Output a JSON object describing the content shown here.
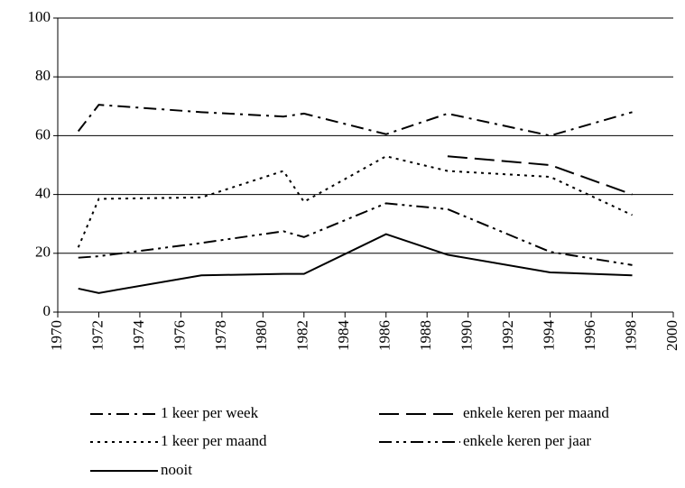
{
  "chart_data": {
    "type": "line",
    "x": [
      1971,
      1972,
      1977,
      1981,
      1982,
      1986,
      1989,
      1994,
      1998
    ],
    "series": [
      {
        "name": "1 keer per week",
        "color": "#000000",
        "dash": "14 6 3 6",
        "values": [
          61.5,
          70.5,
          68,
          66.5,
          67.5,
          60.5,
          67.5,
          60,
          68
        ]
      },
      {
        "name": "enkele keren per maand",
        "color": "#000000",
        "dash": "22 8",
        "values": [
          null,
          null,
          null,
          null,
          null,
          null,
          53,
          50,
          40
        ]
      },
      {
        "name": "1 keer per maand",
        "color": "#000000",
        "dash": "3 5",
        "values": [
          22,
          38.5,
          39,
          48,
          37.5,
          53,
          48,
          46,
          33
        ]
      },
      {
        "name": "enkele keren per jaar",
        "color": "#000000",
        "dash": "14 5 3 5 3 5",
        "values": [
          18.5,
          19,
          23.5,
          27.5,
          25.5,
          37,
          35,
          20.5,
          16
        ]
      },
      {
        "name": "nooit",
        "color": "#000000",
        "dash": "none",
        "values": [
          8,
          6.5,
          12.5,
          13,
          13,
          26.5,
          19.5,
          13.5,
          12.5
        ]
      }
    ],
    "xlim": [
      1970,
      2000
    ],
    "xticks": [
      1970,
      1972,
      1974,
      1976,
      1978,
      1980,
      1982,
      1984,
      1986,
      1988,
      1990,
      1992,
      1994,
      1996,
      1998,
      2000
    ],
    "ylim": [
      0,
      100
    ],
    "yticks": [
      0,
      20,
      40,
      60,
      80,
      100
    ],
    "grid": true,
    "legend": "bottom"
  }
}
